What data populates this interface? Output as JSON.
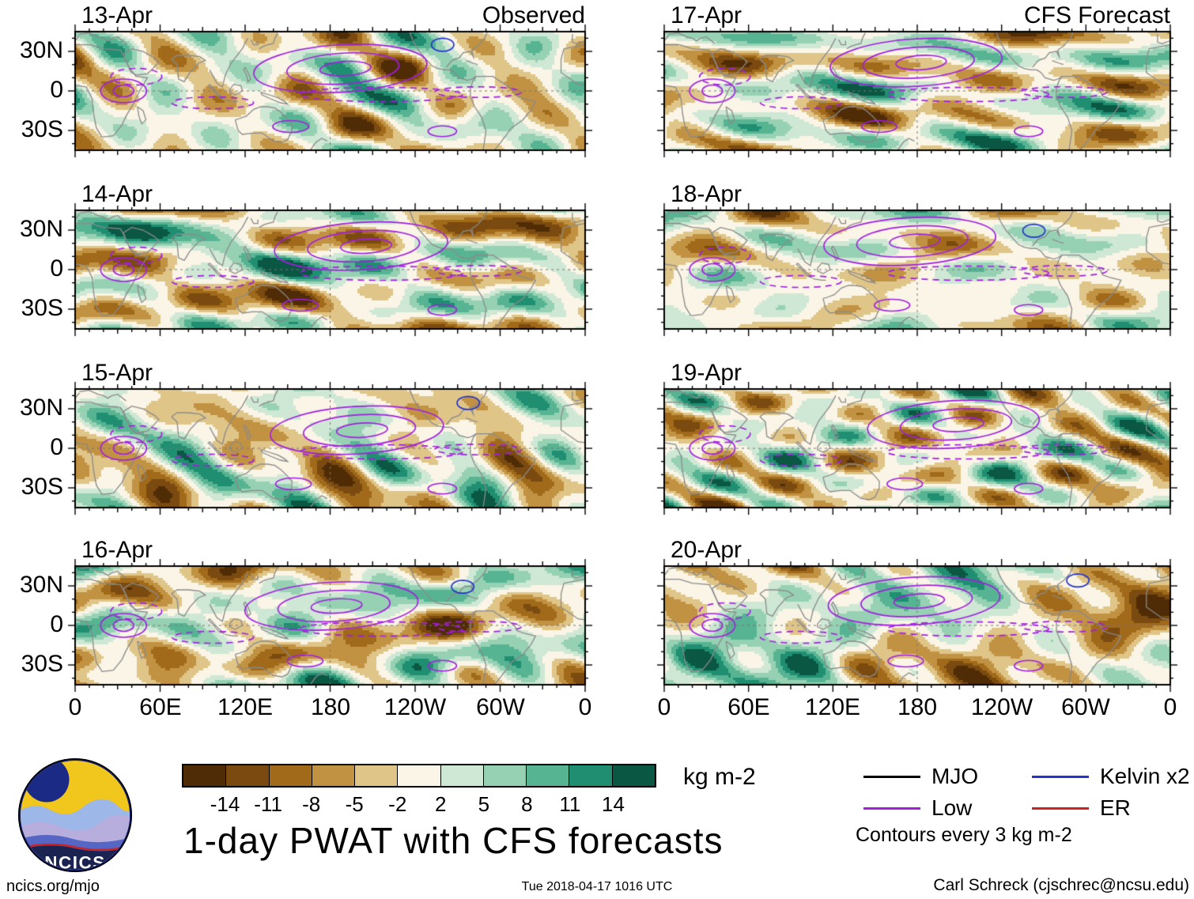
{
  "title": "1-day PWAT with CFS forecasts",
  "units_label": "kg m-2",
  "columns": [
    {
      "header": "Observed",
      "dates": [
        "13-Apr",
        "14-Apr",
        "15-Apr",
        "16-Apr"
      ]
    },
    {
      "header": "CFS Forecast",
      "dates": [
        "17-Apr",
        "18-Apr",
        "19-Apr",
        "20-Apr"
      ]
    }
  ],
  "axes": {
    "lat_ticks": [
      "30N",
      "0",
      "30S"
    ],
    "lon_ticks": [
      "0",
      "60E",
      "120E",
      "180",
      "120W",
      "60W",
      "0"
    ]
  },
  "legend": {
    "entries": [
      {
        "label": "MJO",
        "color": "#000000",
        "style": "solid"
      },
      {
        "label": "Low",
        "color": "#a21fe0",
        "style": "solid"
      },
      {
        "label": "Kelvin x2",
        "color": "#2433cc",
        "style": "solid"
      },
      {
        "label": "ER",
        "color": "#cc2222",
        "style": "solid"
      }
    ],
    "note": "Contours every 3 kg m-2"
  },
  "footer": {
    "left": "ncics.org/mjo",
    "center": "Tue 2018-04-17 1016 UTC",
    "right": "Carl Schreck (cjschrec@ncsu.edu)"
  },
  "logo": {
    "text": "NCICS"
  },
  "chart_data": {
    "type": "heatmap",
    "variable": "1-day precipitable water (PWAT) anomaly with CFS forecasts",
    "units": "kg m-2",
    "panels": [
      {
        "column": "Observed",
        "date": "13-Apr"
      },
      {
        "column": "Observed",
        "date": "14-Apr"
      },
      {
        "column": "Observed",
        "date": "15-Apr"
      },
      {
        "column": "Observed",
        "date": "16-Apr"
      },
      {
        "column": "CFS Forecast",
        "date": "17-Apr"
      },
      {
        "column": "CFS Forecast",
        "date": "18-Apr"
      },
      {
        "column": "CFS Forecast",
        "date": "19-Apr"
      },
      {
        "column": "CFS Forecast",
        "date": "20-Apr"
      }
    ],
    "map_extent": {
      "lon_range": [
        0,
        360
      ],
      "lat_range": [
        -45,
        45
      ],
      "lon_tick_labels": [
        "0",
        "60E",
        "120E",
        "180",
        "120W",
        "60W",
        "0"
      ],
      "lat_tick_labels": [
        "30N",
        "0",
        "30S"
      ]
    },
    "colorbar": {
      "levels": [
        -14,
        -11,
        -8,
        -5,
        -2,
        2,
        5,
        8,
        11,
        14
      ],
      "tick_labels": [
        "-14",
        "-11",
        "-8",
        "-5",
        "-2",
        "2",
        "5",
        "8",
        "11",
        "14"
      ],
      "colors": [
        "#4f2c06",
        "#7a4a10",
        "#a06a1a",
        "#c29243",
        "#e0c589",
        "#faf5e6",
        "#cfe8d5",
        "#97d1b4",
        "#57b493",
        "#1f8e71",
        "#0a5743"
      ],
      "units": "kg m-2"
    },
    "contours": {
      "interval_note": "Contours every 3 kg m-2",
      "series": [
        "MJO",
        "Low",
        "Kelvin x2",
        "ER"
      ]
    }
  }
}
